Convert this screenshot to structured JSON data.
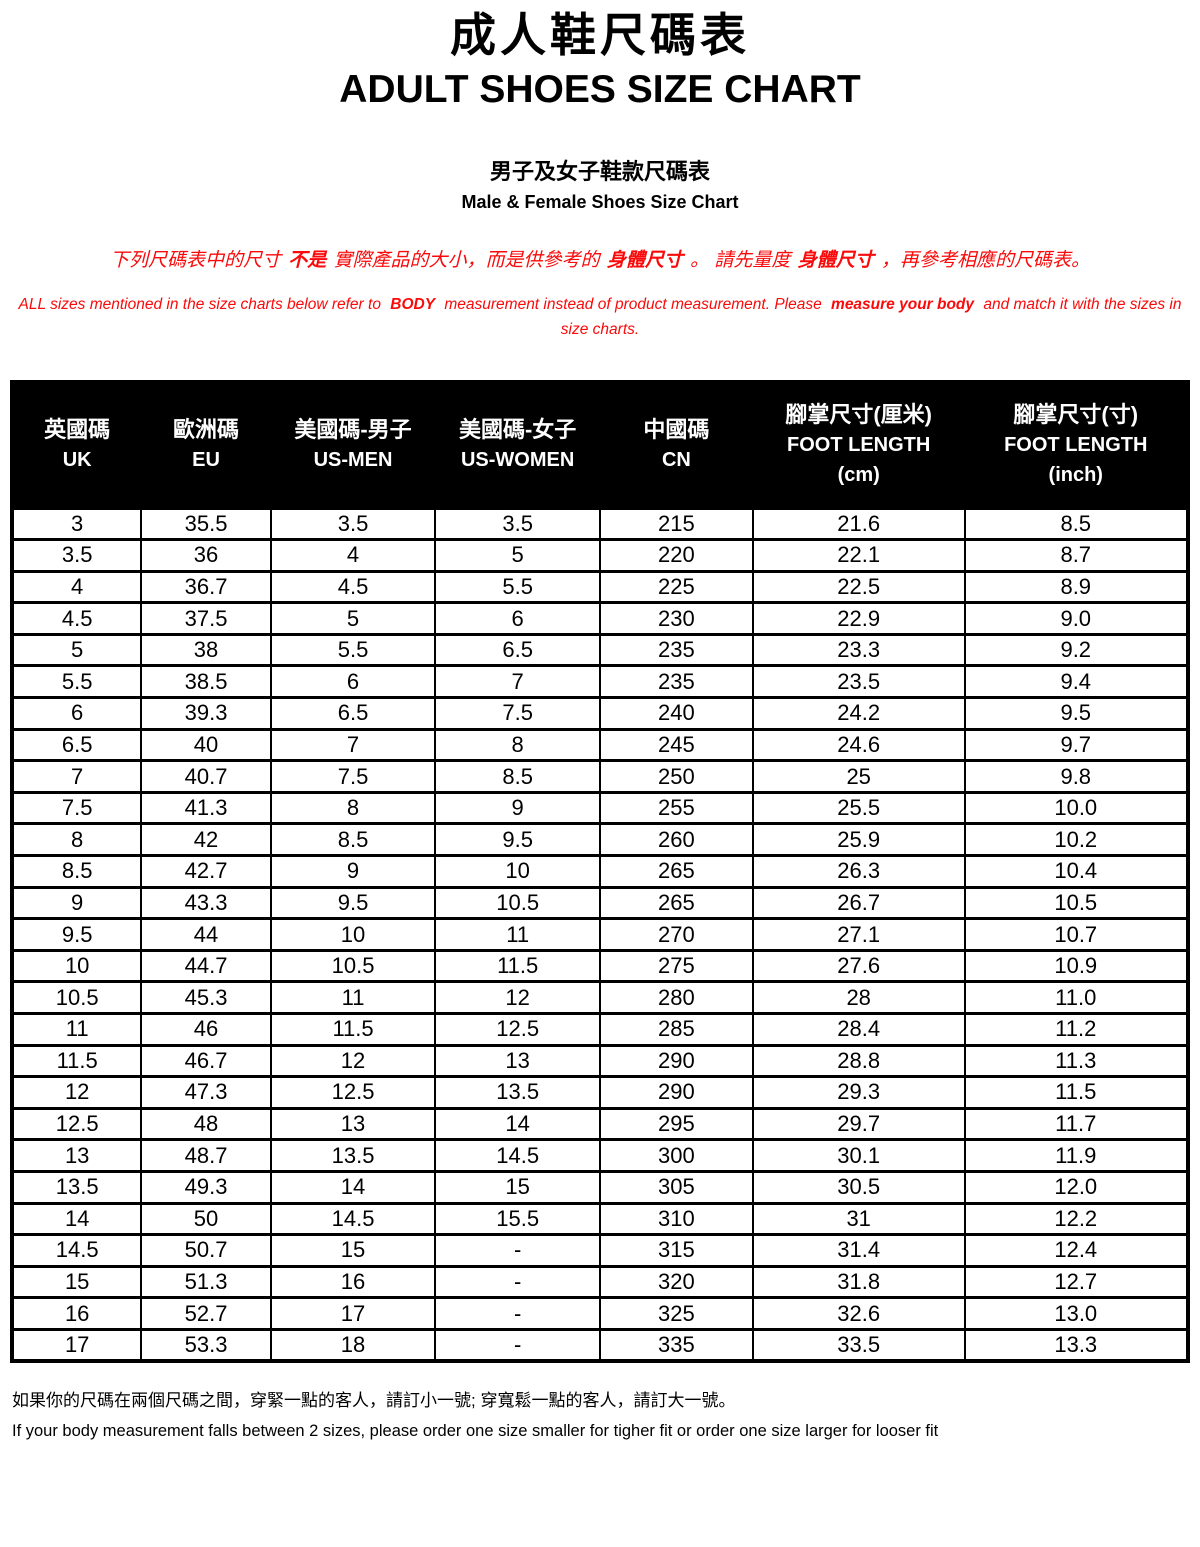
{
  "page": {
    "title_zh": "成人鞋尺碼表",
    "title_en": "ADULT SHOES SIZE CHART",
    "subtitle_zh": "男子及女子鞋款尺碼表",
    "subtitle_en": "Male & Female Shoes Size Chart"
  },
  "notice": {
    "text_color": "#FA0A0A",
    "zh_segments": [
      {
        "text": "下列尺碼表中的尺寸 ",
        "bold": false
      },
      {
        "text": "不是",
        "bold": true
      },
      {
        "text": " 實際產品的大小，而是供參考的 ",
        "bold": false
      },
      {
        "text": "身體尺寸",
        "bold": true
      },
      {
        "text": " 。 請先量度 ",
        "bold": false
      },
      {
        "text": "身體尺寸",
        "bold": true
      },
      {
        "text": " ，再參考相應的尺碼表。",
        "bold": false
      }
    ],
    "en_segments": [
      {
        "text": "ALL sizes mentioned in the size charts below refer to ",
        "bold": false
      },
      {
        "text": "BODY",
        "bold": true
      },
      {
        "text": " measurement instead of product measurement. Please ",
        "bold": false
      },
      {
        "text": "measure your body",
        "bold": true
      },
      {
        "text": " and match it with the sizes in size charts.",
        "bold": false
      }
    ]
  },
  "table": {
    "column_widths_pct": [
      11,
      11,
      14,
      14,
      13,
      18,
      19
    ],
    "columns": [
      {
        "zh": "英國碼",
        "en": "UK"
      },
      {
        "zh": "歐洲碼",
        "en": "EU"
      },
      {
        "zh": "美國碼-男子",
        "en": "US-MEN"
      },
      {
        "zh": "美國碼-女子",
        "en": "US-WOMEN"
      },
      {
        "zh": "中國碼",
        "en": "CN"
      },
      {
        "zh": "腳掌尺寸(厘米)",
        "en": "FOOT LENGTH",
        "unit": "(cm)"
      },
      {
        "zh": "腳掌尺寸(寸)",
        "en": "FOOT LENGTH",
        "unit": "(inch)"
      }
    ],
    "rows": [
      [
        "3",
        "35.5",
        "3.5",
        "3.5",
        "215",
        "21.6",
        "8.5"
      ],
      [
        "3.5",
        "36",
        "4",
        "5",
        "220",
        "22.1",
        "8.7"
      ],
      [
        "4",
        "36.7",
        "4.5",
        "5.5",
        "225",
        "22.5",
        "8.9"
      ],
      [
        "4.5",
        "37.5",
        "5",
        "6",
        "230",
        "22.9",
        "9.0"
      ],
      [
        "5",
        "38",
        "5.5",
        "6.5",
        "235",
        "23.3",
        "9.2"
      ],
      [
        "5.5",
        "38.5",
        "6",
        "7",
        "235",
        "23.5",
        "9.4"
      ],
      [
        "6",
        "39.3",
        "6.5",
        "7.5",
        "240",
        "24.2",
        "9.5"
      ],
      [
        "6.5",
        "40",
        "7",
        "8",
        "245",
        "24.6",
        "9.7"
      ],
      [
        "7",
        "40.7",
        "7.5",
        "8.5",
        "250",
        "25",
        "9.8"
      ],
      [
        "7.5",
        "41.3",
        "8",
        "9",
        "255",
        "25.5",
        "10.0"
      ],
      [
        "8",
        "42",
        "8.5",
        "9.5",
        "260",
        "25.9",
        "10.2"
      ],
      [
        "8.5",
        "42.7",
        "9",
        "10",
        "265",
        "26.3",
        "10.4"
      ],
      [
        "9",
        "43.3",
        "9.5",
        "10.5",
        "265",
        "26.7",
        "10.5"
      ],
      [
        "9.5",
        "44",
        "10",
        "11",
        "270",
        "27.1",
        "10.7"
      ],
      [
        "10",
        "44.7",
        "10.5",
        "11.5",
        "275",
        "27.6",
        "10.9"
      ],
      [
        "10.5",
        "45.3",
        "11",
        "12",
        "280",
        "28",
        "11.0"
      ],
      [
        "11",
        "46",
        "11.5",
        "12.5",
        "285",
        "28.4",
        "11.2"
      ],
      [
        "11.5",
        "46.7",
        "12",
        "13",
        "290",
        "28.8",
        "11.3"
      ],
      [
        "12",
        "47.3",
        "12.5",
        "13.5",
        "290",
        "29.3",
        "11.5"
      ],
      [
        "12.5",
        "48",
        "13",
        "14",
        "295",
        "29.7",
        "11.7"
      ],
      [
        "13",
        "48.7",
        "13.5",
        "14.5",
        "300",
        "30.1",
        "11.9"
      ],
      [
        "13.5",
        "49.3",
        "14",
        "15",
        "305",
        "30.5",
        "12.0"
      ],
      [
        "14",
        "50",
        "14.5",
        "15.5",
        "310",
        "31",
        "12.2"
      ],
      [
        "14.5",
        "50.7",
        "15",
        "-",
        "315",
        "31.4",
        "12.4"
      ],
      [
        "15",
        "51.3",
        "16",
        "-",
        "320",
        "31.8",
        "12.7"
      ],
      [
        "16",
        "52.7",
        "17",
        "-",
        "325",
        "32.6",
        "13.0"
      ],
      [
        "17",
        "53.3",
        "18",
        "-",
        "335",
        "33.5",
        "13.3"
      ]
    ]
  },
  "footer": {
    "zh": "如果你的尺碼在兩個尺碼之間，穿緊一點的客人，請訂小一號; 穿寬鬆一點的客人，請訂大一號。",
    "en": "If your body measurement falls between 2 sizes, please order one size smaller for tigher fit or order one size larger for looser fit"
  }
}
